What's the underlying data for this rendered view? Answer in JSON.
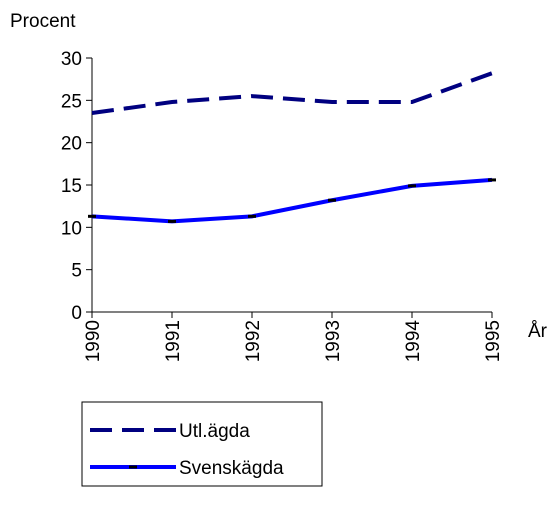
{
  "chart_data": {
    "type": "line",
    "y_label": "Procent",
    "x_label": "År",
    "categories": [
      "1990",
      "1991",
      "1992",
      "1993",
      "1994",
      "1995"
    ],
    "series": [
      {
        "name": "Utl.ägda",
        "color": "#000080",
        "dashed": true,
        "values": [
          23.5,
          24.8,
          25.5,
          24.8,
          24.8,
          28.2
        ]
      },
      {
        "name": "Svenskägda",
        "color": "#0000ff",
        "dashed": false,
        "values": [
          11.3,
          10.7,
          11.3,
          13.2,
          14.9,
          15.6
        ]
      }
    ],
    "ylim": [
      0,
      30
    ],
    "yticks": [
      0,
      5,
      10,
      15,
      20,
      25,
      30
    ],
    "legend": "bottom"
  }
}
